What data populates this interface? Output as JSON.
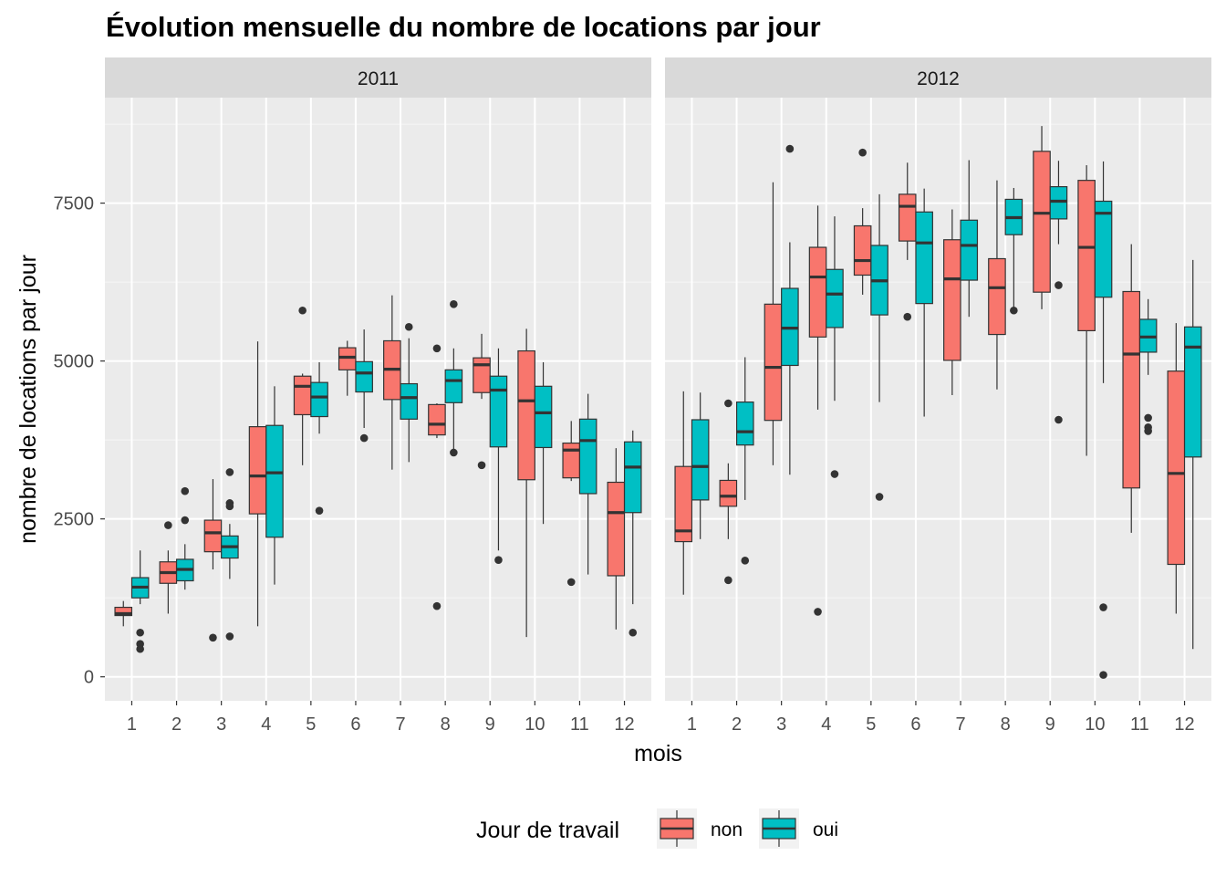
{
  "chart_data": {
    "type": "boxplot",
    "title": "Évolution mensuelle du nombre de locations par jour",
    "xlabel": "mois",
    "ylabel": "nombre de locations par jour",
    "ylim": [
      -380,
      9170
    ],
    "yticks": [
      0,
      2500,
      5000,
      7500
    ],
    "categories": [
      "1",
      "2",
      "3",
      "4",
      "5",
      "6",
      "7",
      "8",
      "9",
      "10",
      "11",
      "12"
    ],
    "grid": true,
    "legend": {
      "title": "Jour de travail",
      "position": "bottom",
      "entries": [
        {
          "label": "non",
          "color": "#F8766D"
        },
        {
          "label": "oui",
          "color": "#00BFC4"
        }
      ]
    },
    "facets": [
      {
        "label": "2011",
        "series": [
          {
            "name": "non",
            "color": "#F8766D",
            "boxes": [
              {
                "min": 800,
                "q1": 970,
                "median": 1000,
                "q3": 1100,
                "max": 1200,
                "outliers": []
              },
              {
                "min": 1000,
                "q1": 1480,
                "median": 1650,
                "q3": 1820,
                "max": 2000,
                "outliers": [
                  2400
                ]
              },
              {
                "min": 1700,
                "q1": 1980,
                "median": 2280,
                "q3": 2480,
                "max": 3130,
                "outliers": [
                  620
                ]
              },
              {
                "min": 800,
                "q1": 2580,
                "median": 3180,
                "q3": 3960,
                "max": 5310,
                "outliers": []
              },
              {
                "min": 3350,
                "q1": 4150,
                "median": 4600,
                "q3": 4760,
                "max": 4800,
                "outliers": [
                  5800
                ]
              },
              {
                "min": 4450,
                "q1": 4860,
                "median": 5060,
                "q3": 5210,
                "max": 5320,
                "outliers": []
              },
              {
                "min": 3280,
                "q1": 4390,
                "median": 4870,
                "q3": 5320,
                "max": 6040,
                "outliers": []
              },
              {
                "min": 3780,
                "q1": 3830,
                "median": 4000,
                "q3": 4310,
                "max": 4330,
                "outliers": [
                  5200,
                  1120
                ]
              },
              {
                "min": 4400,
                "q1": 4500,
                "median": 4940,
                "q3": 5050,
                "max": 5430,
                "outliers": [
                  3350
                ]
              },
              {
                "min": 630,
                "q1": 3120,
                "median": 4370,
                "q3": 5160,
                "max": 5510,
                "outliers": []
              },
              {
                "min": 3100,
                "q1": 3150,
                "median": 3590,
                "q3": 3700,
                "max": 4050,
                "outliers": [
                  1500
                ]
              },
              {
                "min": 750,
                "q1": 1600,
                "median": 2600,
                "q3": 3080,
                "max": 3620,
                "outliers": []
              }
            ]
          },
          {
            "name": "oui",
            "color": "#00BFC4",
            "boxes": [
              {
                "min": 1150,
                "q1": 1250,
                "median": 1420,
                "q3": 1570,
                "max": 2000,
                "outliers": [
                  700,
                  520,
                  440
                ]
              },
              {
                "min": 1380,
                "q1": 1520,
                "median": 1700,
                "q3": 1860,
                "max": 2100,
                "outliers": [
                  2940,
                  2480
                ]
              },
              {
                "min": 1550,
                "q1": 1880,
                "median": 2060,
                "q3": 2230,
                "max": 2420,
                "outliers": [
                  3240,
                  2750,
                  2700,
                  640
                ]
              },
              {
                "min": 1460,
                "q1": 2210,
                "median": 3230,
                "q3": 3980,
                "max": 4600,
                "outliers": []
              },
              {
                "min": 3850,
                "q1": 4120,
                "median": 4430,
                "q3": 4660,
                "max": 4980,
                "outliers": [
                  2630
                ]
              },
              {
                "min": 3940,
                "q1": 4510,
                "median": 4810,
                "q3": 4990,
                "max": 5500,
                "outliers": [
                  3780
                ]
              },
              {
                "min": 3400,
                "q1": 4080,
                "median": 4420,
                "q3": 4640,
                "max": 5360,
                "outliers": [
                  5540
                ]
              },
              {
                "min": 3600,
                "q1": 4340,
                "median": 4690,
                "q3": 4860,
                "max": 5200,
                "outliers": [
                  5900,
                  3550
                ]
              },
              {
                "min": 2000,
                "q1": 3640,
                "median": 4540,
                "q3": 4760,
                "max": 5200,
                "outliers": [
                  1850
                ]
              },
              {
                "min": 2420,
                "q1": 3630,
                "median": 4180,
                "q3": 4600,
                "max": 4980,
                "outliers": []
              },
              {
                "min": 1620,
                "q1": 2900,
                "median": 3740,
                "q3": 4080,
                "max": 4480,
                "outliers": []
              },
              {
                "min": 1150,
                "q1": 2600,
                "median": 3320,
                "q3": 3720,
                "max": 3900,
                "outliers": [
                  700
                ]
              }
            ]
          }
        ]
      },
      {
        "label": "2012",
        "series": [
          {
            "name": "non",
            "color": "#F8766D",
            "boxes": [
              {
                "min": 1300,
                "q1": 2140,
                "median": 2310,
                "q3": 3330,
                "max": 4520,
                "outliers": []
              },
              {
                "min": 2180,
                "q1": 2700,
                "median": 2860,
                "q3": 3110,
                "max": 3380,
                "outliers": [
                  4330,
                  1530
                ]
              },
              {
                "min": 3350,
                "q1": 4060,
                "median": 4900,
                "q3": 5900,
                "max": 7830,
                "outliers": []
              },
              {
                "min": 4230,
                "q1": 5380,
                "median": 6330,
                "q3": 6800,
                "max": 7460,
                "outliers": [
                  1030
                ]
              },
              {
                "min": 6050,
                "q1": 6360,
                "median": 6590,
                "q3": 7140,
                "max": 7420,
                "outliers": [
                  8300
                ]
              },
              {
                "min": 6600,
                "q1": 6900,
                "median": 7450,
                "q3": 7640,
                "max": 8140,
                "outliers": [
                  5700
                ]
              },
              {
                "min": 4460,
                "q1": 5010,
                "median": 6300,
                "q3": 6920,
                "max": 7400,
                "outliers": []
              },
              {
                "min": 4550,
                "q1": 5420,
                "median": 6160,
                "q3": 6620,
                "max": 7860,
                "outliers": []
              },
              {
                "min": 5820,
                "q1": 6090,
                "median": 7340,
                "q3": 8320,
                "max": 8720,
                "outliers": []
              },
              {
                "min": 3500,
                "q1": 5480,
                "median": 6800,
                "q3": 7860,
                "max": 8100,
                "outliers": []
              },
              {
                "min": 2280,
                "q1": 2990,
                "median": 5110,
                "q3": 6100,
                "max": 6850,
                "outliers": []
              },
              {
                "min": 1000,
                "q1": 1780,
                "median": 3220,
                "q3": 4840,
                "max": 5600,
                "outliers": []
              }
            ]
          },
          {
            "name": "oui",
            "color": "#00BFC4",
            "boxes": [
              {
                "min": 2180,
                "q1": 2800,
                "median": 3330,
                "q3": 4070,
                "max": 4500,
                "outliers": []
              },
              {
                "min": 2800,
                "q1": 3670,
                "median": 3880,
                "q3": 4350,
                "max": 5060,
                "outliers": [
                  1840
                ]
              },
              {
                "min": 3200,
                "q1": 4930,
                "median": 5520,
                "q3": 6150,
                "max": 6880,
                "outliers": [
                  8360
                ]
              },
              {
                "min": 4370,
                "q1": 5530,
                "median": 6060,
                "q3": 6450,
                "max": 7290,
                "outliers": [
                  3210
                ]
              },
              {
                "min": 4350,
                "q1": 5730,
                "median": 6270,
                "q3": 6830,
                "max": 7640,
                "outliers": [
                  2850
                ]
              },
              {
                "min": 4120,
                "q1": 5910,
                "median": 6870,
                "q3": 7360,
                "max": 7730,
                "outliers": []
              },
              {
                "min": 5700,
                "q1": 6280,
                "median": 6830,
                "q3": 7230,
                "max": 8180,
                "outliers": []
              },
              {
                "min": 5800,
                "q1": 7000,
                "median": 7270,
                "q3": 7560,
                "max": 7740,
                "outliers": [
                  5800
                ]
              },
              {
                "min": 6850,
                "q1": 7250,
                "median": 7530,
                "q3": 7760,
                "max": 8170,
                "outliers": [
                  6200,
                  4070
                ]
              },
              {
                "min": 4650,
                "q1": 6010,
                "median": 7340,
                "q3": 7530,
                "max": 8160,
                "outliers": [
                  1100,
                  30
                ]
              },
              {
                "min": 4780,
                "q1": 5140,
                "median": 5380,
                "q3": 5660,
                "max": 5980,
                "outliers": [
                  4100,
                  3950,
                  3890
                ]
              },
              {
                "min": 440,
                "q1": 3480,
                "median": 5220,
                "q3": 5540,
                "max": 6600,
                "outliers": []
              }
            ]
          }
        ]
      }
    ]
  }
}
